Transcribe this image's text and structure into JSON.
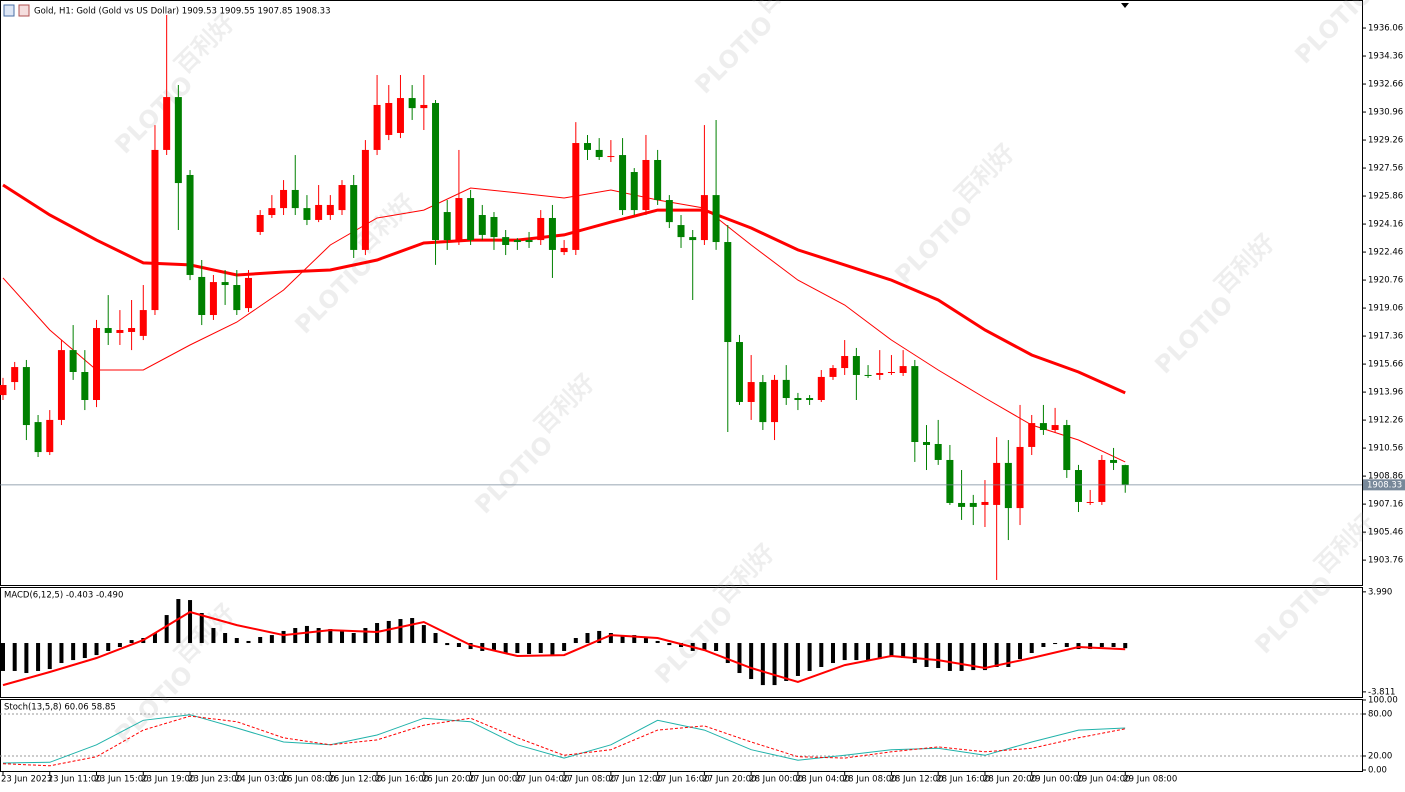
{
  "chart_data": [
    {
      "type": "candlestick",
      "title": "Gold, H1:  Gold (Gold vs US Dollar)  1909.53 1909.55 1907.85 1908.33",
      "watermark": "PLOTIO",
      "watermark_cn": "百利好",
      "up_color": "#ff0000",
      "down_color": "#008000",
      "categories": [
        "23 Jun 2023",
        null,
        null,
        null,
        "23 Jun 11:00",
        null,
        null,
        null,
        "23 Jun 15:00",
        null,
        null,
        null,
        "23 Jun 19:00",
        null,
        null,
        null,
        "23 Jun 23:00",
        null,
        null,
        null,
        "24 Jun 03:00",
        null,
        null,
        null,
        "26 Jun 08:00",
        null,
        null,
        null,
        "26 Jun 12:00",
        null,
        null,
        null,
        "26 Jun 16:00",
        null,
        null,
        null,
        "26 Jun 20:00",
        null,
        null,
        null,
        "27 Jun 00:00",
        null,
        null,
        null,
        "27 Jun 04:00",
        null,
        null,
        null,
        "27 Jun 08:00",
        null,
        null,
        null,
        "27 Jun 12:00",
        null,
        null,
        null,
        "27 Jun 16:00",
        null,
        null,
        null,
        "27 Jun 20:00",
        null,
        null,
        null,
        "28 Jun 00:00",
        null,
        null,
        null,
        "28 Jun 04:00",
        null,
        null,
        null,
        "28 Jun 08:00",
        null,
        null,
        null,
        "28 Jun 12:00",
        null,
        null,
        null,
        "28 Jun 16:00",
        null,
        null,
        null,
        "28 Jun 20:00",
        null,
        null,
        null,
        "29 Jun 00:00",
        null,
        null,
        null,
        "29 Jun 04:00",
        null,
        null,
        null,
        "29 Jun 08:00"
      ],
      "open": [
        1913.78,
        1914.57,
        1915.48,
        1912.14,
        1910.32,
        1912.27,
        1916.51,
        1915.18,
        1913.48,
        1917.85,
        1917.55,
        1917.61,
        1917.37,
        1918.94,
        1928.66,
        1931.87,
        1927.14,
        1920.95,
        1918.64,
        1920.64,
        1920.46,
        1919.06,
        1923.68,
        1924.71,
        1925.13,
        1926.23,
        1925.13,
        1924.41,
        1924.71,
        1925.01,
        1926.53,
        1922.59,
        1928.66,
        1929.57,
        1929.69,
        1931.81,
        1931.2,
        1931.51,
        1924.89,
        1923.19,
        1925.74,
        1924.71,
        1924.59,
        1923.37,
        1923.19,
        1923.19,
        1923.19,
        1924.53,
        1922.46,
        1922.59,
        1929.08,
        1928.66,
        1928.23,
        1928.35,
        1927.32,
        1925.01,
        1928.05,
        1925.62,
        1924.1,
        1923.37,
        1923.19,
        1925.92,
        1923.07,
        1917.0,
        1913.36,
        1914.57,
        1912.14,
        1914.7,
        1913.6,
        1913.6,
        1913.48,
        1914.88,
        1915.42,
        1916.15,
        1915.0,
        1915.0,
        1915.12,
        1915.12,
        1915.54,
        1910.93,
        1910.81,
        1909.84,
        1907.23,
        1907.23,
        1907.11,
        1907.11,
        1909.66,
        1906.92,
        1910.63,
        1912.08,
        1911.66,
        1911.96,
        1909.23,
        1907.23,
        1907.29,
        1909.84,
        1909.53
      ],
      "high": [
        1914.82,
        1915.79,
        1915.91,
        1912.57,
        1912.87,
        1917.12,
        1918.03,
        1916.51,
        1918.34,
        1919.85,
        1918.94,
        1919.55,
        1920.46,
        1930.17,
        1936.85,
        1932.6,
        1927.44,
        1921.98,
        1921.07,
        1921.37,
        1921.37,
        1921.37,
        1925.01,
        1925.92,
        1926.83,
        1928.35,
        1925.92,
        1926.53,
        1925.92,
        1926.83,
        1927.14,
        1929.26,
        1933.21,
        1932.6,
        1933.21,
        1932.6,
        1933.21,
        1931.69,
        1925.62,
        1928.66,
        1926.23,
        1925.32,
        1924.89,
        1923.8,
        1923.31,
        1923.68,
        1925.01,
        1925.32,
        1923.19,
        1930.35,
        1929.57,
        1929.38,
        1929.26,
        1929.38,
        1927.56,
        1929.57,
        1928.66,
        1925.92,
        1924.71,
        1923.8,
        1930.17,
        1930.48,
        1924.1,
        1917.43,
        1916.21,
        1915.0,
        1915.0,
        1915.6,
        1913.91,
        1913.78,
        1915.3,
        1915.6,
        1917.12,
        1916.64,
        1915.6,
        1916.51,
        1916.21,
        1916.51,
        1915.91,
        1911.96,
        1912.27,
        1910.75,
        1909.23,
        1907.72,
        1908.62,
        1911.23,
        1911.05,
        1913.18,
        1912.57,
        1913.18,
        1913.0,
        1912.27,
        1909.54,
        1908.02,
        1910.14,
        1910.57,
        1909.55
      ],
      "low": [
        1913.48,
        1914.09,
        1911.05,
        1910.02,
        1910.14,
        1911.96,
        1914.7,
        1912.87,
        1913.05,
        1916.82,
        1916.82,
        1916.51,
        1917.12,
        1918.64,
        1928.35,
        1923.8,
        1920.76,
        1918.03,
        1918.34,
        1919.25,
        1918.64,
        1918.82,
        1923.5,
        1924.53,
        1924.71,
        1924.71,
        1924.1,
        1924.28,
        1924.41,
        1924.71,
        1922.1,
        1922.28,
        1928.35,
        1929.26,
        1929.38,
        1930.48,
        1929.87,
        1921.68,
        1922.59,
        1922.89,
        1922.89,
        1923.19,
        1922.59,
        1922.28,
        1922.59,
        1922.71,
        1922.89,
        1920.89,
        1922.28,
        1922.28,
        1928.05,
        1928.05,
        1927.93,
        1924.71,
        1924.71,
        1924.71,
        1925.32,
        1923.92,
        1922.71,
        1919.55,
        1922.89,
        1922.59,
        1911.54,
        1913.18,
        1912.27,
        1911.66,
        1911.05,
        1913.18,
        1912.87,
        1913.18,
        1913.36,
        1914.7,
        1915.0,
        1913.48,
        1914.82,
        1914.7,
        1915.0,
        1914.94,
        1909.72,
        1909.23,
        1909.54,
        1907.11,
        1906.2,
        1905.89,
        1905.77,
        1902.55,
        1904.98,
        1905.89,
        1910.14,
        1911.36,
        1911.54,
        1908.75,
        1906.68,
        1907.11,
        1907.11,
        1909.23,
        1907.85
      ],
      "close": [
        1914.39,
        1915.48,
        1911.96,
        1910.32,
        1912.27,
        1916.51,
        1915.18,
        1913.48,
        1917.85,
        1917.55,
        1917.73,
        1917.85,
        1918.94,
        1928.66,
        1931.87,
        1926.65,
        1921.07,
        1918.64,
        1920.64,
        1920.46,
        1918.94,
        1920.89,
        1924.71,
        1925.13,
        1926.23,
        1925.13,
        1924.41,
        1925.32,
        1925.32,
        1926.53,
        1922.59,
        1928.66,
        1931.39,
        1931.51,
        1931.81,
        1931.2,
        1931.39,
        1923.19,
        1923.19,
        1925.74,
        1923.19,
        1923.5,
        1923.37,
        1922.89,
        1923.07,
        1923.07,
        1924.53,
        1922.59,
        1922.71,
        1929.08,
        1928.66,
        1928.23,
        1928.29,
        1925.01,
        1925.01,
        1928.05,
        1925.62,
        1924.28,
        1923.37,
        1923.19,
        1925.92,
        1923.07,
        1917.0,
        1913.36,
        1914.57,
        1912.14,
        1914.7,
        1913.6,
        1913.48,
        1913.48,
        1914.88,
        1915.42,
        1916.15,
        1915.0,
        1914.94,
        1915.12,
        1915.18,
        1915.54,
        1910.93,
        1910.75,
        1909.84,
        1907.23,
        1906.99,
        1906.99,
        1907.29,
        1909.66,
        1906.92,
        1910.63,
        1912.08,
        1911.66,
        1911.96,
        1909.23,
        1907.29,
        1907.29,
        1909.84,
        1909.66,
        1908.33
      ],
      "lines_x": [
        0,
        4,
        8,
        12,
        16,
        20,
        24,
        28,
        32,
        36,
        40,
        44,
        48,
        52,
        56,
        60,
        64,
        68,
        72,
        76,
        80,
        84,
        88,
        92,
        96
      ],
      "lines": [
        {
          "color": "#ff0000",
          "width": 1,
          "values": [
            1920.89,
            1917.73,
            1915.3,
            1915.3,
            1916.82,
            1918.21,
            1920.16,
            1922.89,
            1924.53,
            1925.01,
            1926.35,
            1926.05,
            1925.74,
            1926.23,
            1925.62,
            1925.13,
            1922.89,
            1920.76,
            1919.25,
            1917.12,
            1915.3,
            1913.6,
            1911.96,
            1911.05,
            1909.72
          ]
        },
        {
          "color": "#ff0000",
          "width": 3,
          "values": [
            1926.53,
            1924.71,
            1923.19,
            1921.8,
            1921.68,
            1921.07,
            1921.25,
            1921.37,
            1921.98,
            1923.01,
            1923.19,
            1923.19,
            1923.5,
            1924.28,
            1925.01,
            1925.01,
            1923.92,
            1922.59,
            1921.68,
            1920.76,
            1919.55,
            1917.73,
            1916.21,
            1915.18,
            1913.91
          ]
        }
      ],
      "last_price": 1908.33,
      "ylim": [
        1902.25,
        1937.58
      ],
      "yticks": [
        1936.06,
        1934.36,
        1932.66,
        1930.96,
        1929.26,
        1927.56,
        1925.86,
        1924.16,
        1922.46,
        1920.76,
        1919.06,
        1917.36,
        1915.66,
        1913.96,
        1912.26,
        1910.56,
        1908.86,
        1907.16,
        1905.46,
        1903.76
      ]
    },
    {
      "type": "macd",
      "title": "MACD(6,12,5) -0.403 -0.490",
      "color": "#000000",
      "values": [
        -2.18,
        -2.18,
        -2.34,
        -2.18,
        -2.03,
        -1.56,
        -1.33,
        -1.17,
        -0.94,
        -0.62,
        -0.31,
        0.23,
        0.39,
        0.78,
        2.18,
        3.43,
        3.35,
        2.34,
        1.17,
        0.78,
        0.39,
        0.16,
        0.47,
        0.62,
        0.94,
        1.17,
        1.33,
        1.17,
        1.09,
        0.94,
        0.78,
        1.17,
        1.56,
        1.72,
        1.87,
        1.95,
        1.4,
        0.78,
        -0.16,
        -0.31,
        -0.47,
        -0.62,
        -0.62,
        -0.78,
        -0.78,
        -0.86,
        -0.78,
        -0.94,
        -0.62,
        0.39,
        0.78,
        0.94,
        0.78,
        0.62,
        0.62,
        0.47,
        0.16,
        -0.16,
        -0.31,
        -0.62,
        -0.55,
        -0.62,
        -1.56,
        -2.34,
        -2.81,
        -3.28,
        -3.28,
        -2.96,
        -2.57,
        -2.18,
        -1.87,
        -1.56,
        -1.33,
        -1.33,
        -1.33,
        -1.25,
        -1.09,
        -1.17,
        -1.56,
        -1.87,
        -1.95,
        -2.18,
        -2.18,
        -2.11,
        -2.11,
        -1.87,
        -1.87,
        -1.25,
        -0.78,
        -0.31,
        -0.08,
        -0.31,
        -0.47,
        -0.47,
        -0.31,
        -0.31,
        -0.403
      ],
      "lines_x": [
        0,
        4,
        8,
        12,
        16,
        20,
        24,
        28,
        32,
        36,
        40,
        44,
        48,
        52,
        56,
        60,
        64,
        68,
        72,
        76,
        80,
        84,
        88,
        92,
        96
      ],
      "lines": [
        {
          "color": "#ff0000",
          "width": 2,
          "values": [
            -3.28,
            -2.26,
            -1.17,
            0.23,
            2.42,
            1.4,
            0.62,
            1.01,
            0.86,
            1.64,
            -0.16,
            -1.01,
            -0.94,
            0.62,
            0.39,
            -0.55,
            -1.95,
            -3.04,
            -1.72,
            -1.01,
            -1.33,
            -1.95,
            -1.17,
            -0.31,
            -0.49
          ]
        }
      ],
      "ylim": [
        -4.21,
        4.29
      ],
      "yticks": [
        {
          "value": 3.99,
          "label": "3.990"
        },
        {
          "value": -3.811,
          "label": "-3.811"
        }
      ]
    },
    {
      "type": "stochastic",
      "title": "Stoch(13,5,8) 60.06 58.85",
      "lines_x": [
        0,
        4,
        8,
        12,
        16,
        20,
        24,
        28,
        32,
        36,
        40,
        44,
        48,
        52,
        56,
        60,
        64,
        68,
        72,
        76,
        80,
        84,
        88,
        92,
        96
      ],
      "lines": [
        {
          "color": "#20b2aa",
          "width": 1,
          "dash": false,
          "values": [
            10,
            11,
            36,
            71,
            79,
            60,
            40,
            36,
            50,
            74,
            69,
            36,
            17,
            36,
            71,
            57,
            29,
            14,
            21,
            29,
            31,
            21,
            40,
            57,
            60.06
          ]
        },
        {
          "color": "#ff0000",
          "width": 1,
          "dash": true,
          "values": [
            9,
            6,
            19,
            57,
            77,
            69,
            46,
            36,
            43,
            64,
            74,
            46,
            21,
            29,
            57,
            63,
            40,
            19,
            17,
            26,
            33,
            26,
            31,
            46,
            58.85
          ]
        }
      ],
      "levels": [
        80,
        20
      ],
      "ylim": [
        -1.4,
        101.4
      ],
      "yticks": [
        {
          "value": 100,
          "label": "100.00"
        },
        {
          "value": 80,
          "label": "80.00"
        },
        {
          "value": 20,
          "label": "20.00"
        },
        {
          "value": 0,
          "label": "0.00"
        }
      ]
    }
  ]
}
